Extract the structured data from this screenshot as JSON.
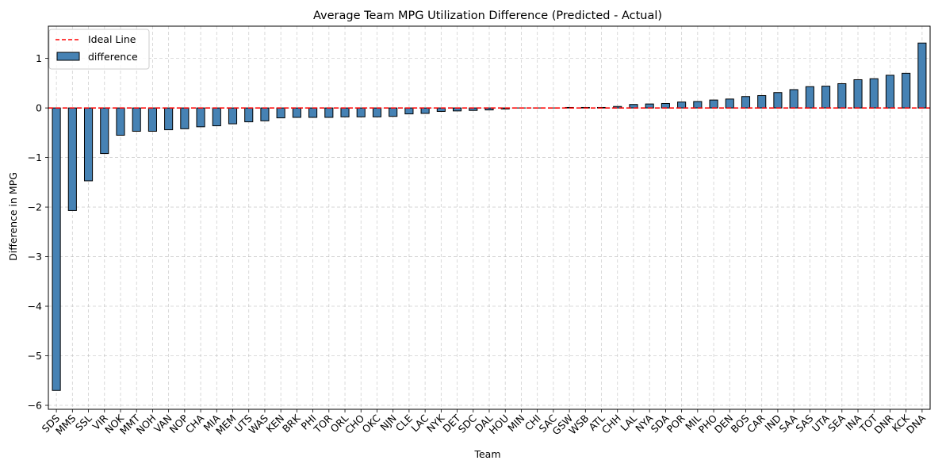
{
  "chart_data": {
    "type": "bar",
    "title": "Average Team MPG Utilization Difference (Predicted - Actual)",
    "xlabel": "Team",
    "ylabel": "Difference in MPG",
    "ylim": [
      -6.08,
      1.65
    ],
    "yticks": [
      -6,
      -5,
      -4,
      -3,
      -2,
      -1,
      0,
      1
    ],
    "grid": true,
    "legend_position": "upper-left",
    "ideal_line": {
      "label": "Ideal Line",
      "value": 0,
      "color": "#ff0000",
      "style": "dashed"
    },
    "bar_color": "#4682b4",
    "bar_edge_color": "#000000",
    "categories": [
      "SDS",
      "MMS",
      "SSL",
      "VIR",
      "NOK",
      "MMT",
      "NOH",
      "VAN",
      "NOP",
      "CHA",
      "MIA",
      "MEM",
      "UTS",
      "WAS",
      "KEN",
      "BRK",
      "PHI",
      "TOR",
      "ORL",
      "CHO",
      "OKC",
      "NJN",
      "CLE",
      "LAC",
      "NYK",
      "DET",
      "SDC",
      "DAL",
      "HOU",
      "MIN",
      "CHI",
      "SAC",
      "GSW",
      "WSB",
      "ATL",
      "CHH",
      "LAL",
      "NYA",
      "SDA",
      "POR",
      "MIL",
      "PHO",
      "DEN",
      "BOS",
      "CAR",
      "IND",
      "SAA",
      "SAS",
      "UTA",
      "SEA",
      "INA",
      "TOT",
      "DNR",
      "KCK",
      "DNA"
    ],
    "series": [
      {
        "name": "difference",
        "values": [
          -5.7,
          -2.07,
          -1.47,
          -0.92,
          -0.55,
          -0.47,
          -0.47,
          -0.44,
          -0.42,
          -0.38,
          -0.36,
          -0.32,
          -0.28,
          -0.26,
          -0.2,
          -0.19,
          -0.19,
          -0.19,
          -0.18,
          -0.18,
          -0.18,
          -0.17,
          -0.12,
          -0.11,
          -0.07,
          -0.06,
          -0.05,
          -0.04,
          -0.02,
          0.0,
          0.0,
          0.0,
          0.01,
          0.01,
          0.01,
          0.03,
          0.07,
          0.08,
          0.09,
          0.12,
          0.13,
          0.16,
          0.18,
          0.23,
          0.25,
          0.31,
          0.37,
          0.43,
          0.44,
          0.49,
          0.57,
          0.59,
          0.66,
          0.7,
          1.31
        ]
      }
    ]
  }
}
